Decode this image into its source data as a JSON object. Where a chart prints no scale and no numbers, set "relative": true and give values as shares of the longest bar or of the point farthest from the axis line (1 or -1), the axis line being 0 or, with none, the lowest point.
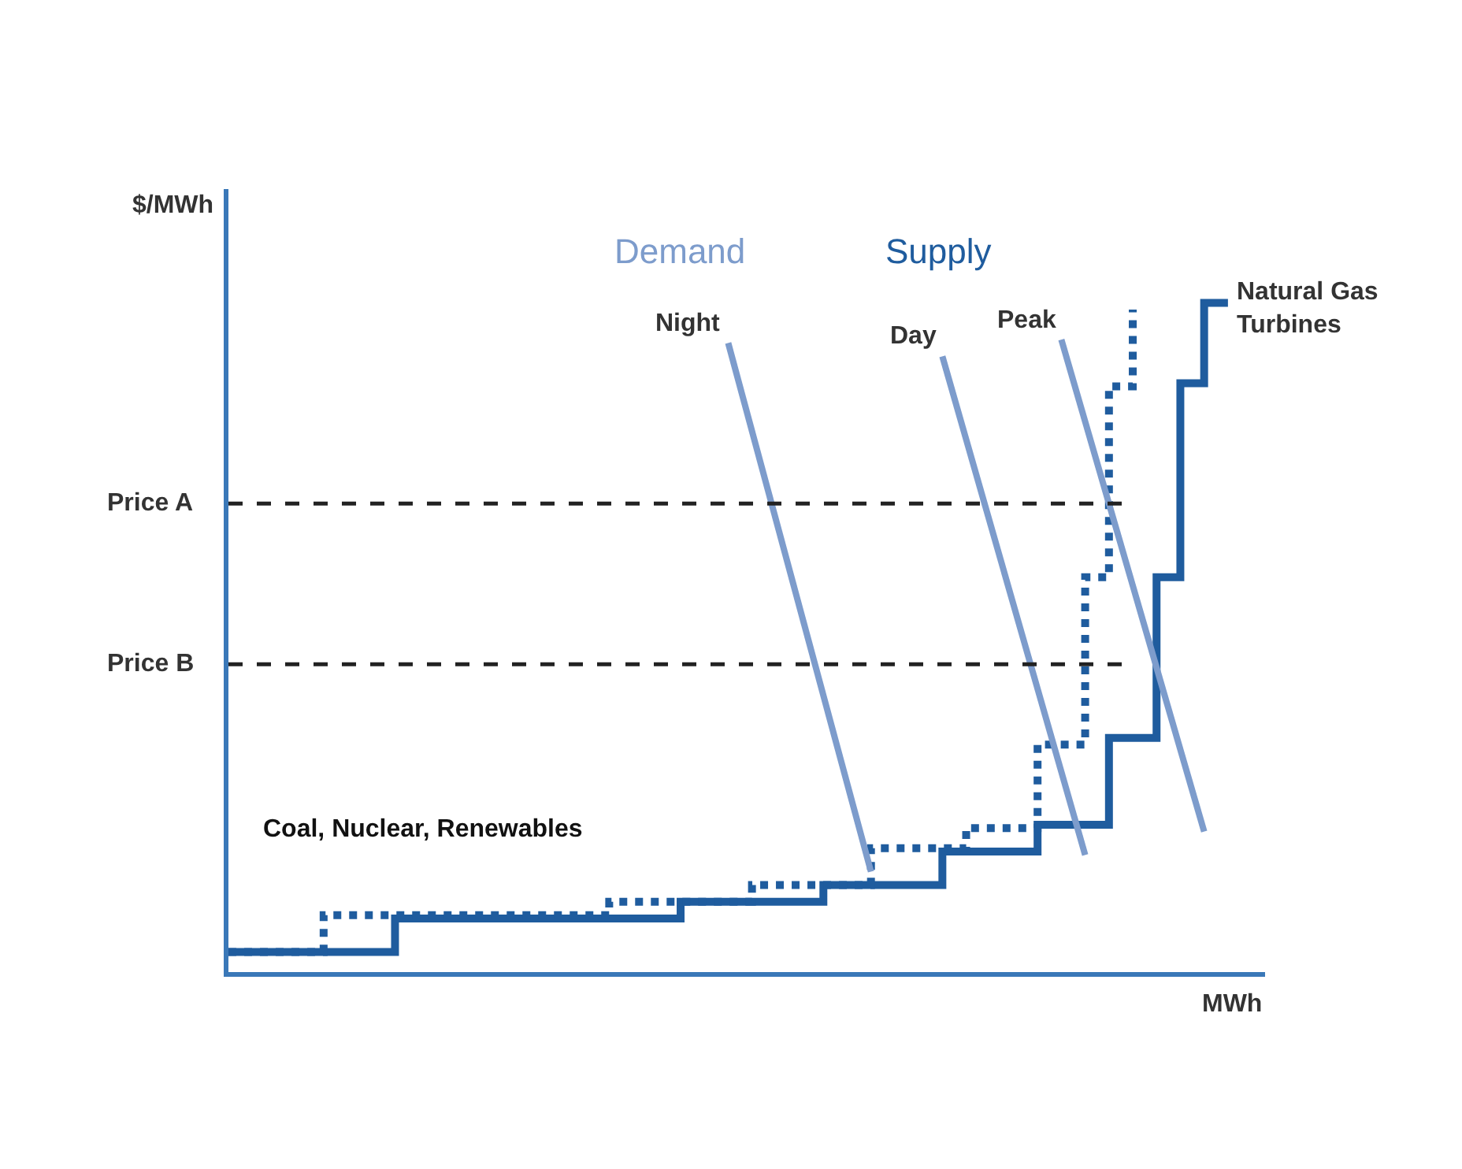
{
  "chart_data": {
    "type": "step",
    "relative": true,
    "ylabel": "$/MWh",
    "xlabel": "MWh",
    "categories": [
      null,
      null,
      null,
      null,
      null,
      null,
      null,
      null,
      null,
      null,
      null,
      null,
      null,
      null,
      null,
      null,
      null,
      null,
      null,
      null,
      null,
      null,
      null,
      null,
      null,
      null,
      null,
      null,
      null,
      null,
      null,
      null,
      null,
      null,
      null,
      null,
      null,
      null,
      null,
      null,
      null,
      null,
      null,
      null
    ],
    "series": [
      {
        "color": "#1f5c9e",
        "line_style": "solid",
        "values": [
          0.03,
          0.03,
          0.03,
          0.03,
          0.03,
          0.03,
          0.03,
          0.08,
          0.08,
          0.08,
          0.08,
          0.08,
          0.08,
          0.08,
          0.08,
          0.08,
          0.08,
          0.08,
          0.08,
          0.105,
          0.105,
          0.105,
          0.105,
          0.105,
          0.105,
          0.13,
          0.13,
          0.13,
          0.13,
          0.13,
          0.18,
          0.18,
          0.18,
          0.18,
          0.22,
          0.22,
          0.22,
          0.35,
          0.35,
          0.59,
          0.88,
          1.0,
          1.0,
          null
        ]
      },
      {
        "color": "#1f5c9e",
        "line_style": "dotted",
        "values": [
          0.03,
          0.03,
          0.03,
          0.03,
          0.085,
          0.085,
          0.085,
          0.085,
          0.085,
          0.085,
          0.085,
          0.085,
          0.085,
          0.085,
          0.085,
          0.085,
          0.105,
          0.105,
          0.105,
          0.105,
          0.105,
          0.105,
          0.13,
          0.13,
          0.13,
          0.13,
          0.13,
          0.185,
          0.185,
          0.185,
          0.185,
          0.215,
          0.215,
          0.215,
          0.34,
          0.34,
          0.59,
          0.875,
          0.99,
          null,
          null,
          null,
          null,
          null
        ]
      },
      {
        "type": "line",
        "name": "Night",
        "color": "#7d9ccc",
        "values": [
          null,
          null,
          null,
          null,
          null,
          null,
          null,
          null,
          null,
          null,
          null,
          null,
          null,
          null,
          null,
          null,
          null,
          null,
          null,
          null,
          null,
          0.94,
          null,
          null,
          null,
          null,
          null,
          0.15,
          null,
          null,
          null,
          null,
          null,
          null,
          null,
          null,
          null,
          null,
          null,
          null,
          null,
          null,
          null,
          null
        ]
      },
      {
        "type": "line",
        "name": "Day",
        "color": "#7d9ccc",
        "values": [
          null,
          null,
          null,
          null,
          null,
          null,
          null,
          null,
          null,
          null,
          null,
          null,
          null,
          null,
          null,
          null,
          null,
          null,
          null,
          null,
          null,
          null,
          null,
          null,
          null,
          null,
          null,
          null,
          null,
          null,
          0.92,
          null,
          null,
          null,
          null,
          null,
          0.175,
          null,
          null,
          null,
          null,
          null,
          null,
          null
        ]
      },
      {
        "type": "line",
        "name": "Peak",
        "color": "#7d9ccc",
        "values": [
          null,
          null,
          null,
          null,
          null,
          null,
          null,
          null,
          null,
          null,
          null,
          null,
          null,
          null,
          null,
          null,
          null,
          null,
          null,
          null,
          null,
          null,
          null,
          null,
          null,
          null,
          null,
          null,
          null,
          null,
          null,
          null,
          null,
          null,
          null,
          0.945,
          null,
          null,
          null,
          null,
          null,
          0.21,
          null,
          null
        ]
      }
    ],
    "ref_lines": [
      {
        "axis": "y",
        "value": 0.7,
        "label": "Price A",
        "color": "#222222",
        "line_style": "dashed"
      },
      {
        "axis": "y",
        "value": 0.46,
        "label": "Price B",
        "color": "#222222",
        "line_style": "dashed"
      }
    ],
    "annotations": [
      "Demand",
      "Supply",
      "Natural Gas Turbines",
      "Coal, Nuclear, Renewables"
    ]
  }
}
